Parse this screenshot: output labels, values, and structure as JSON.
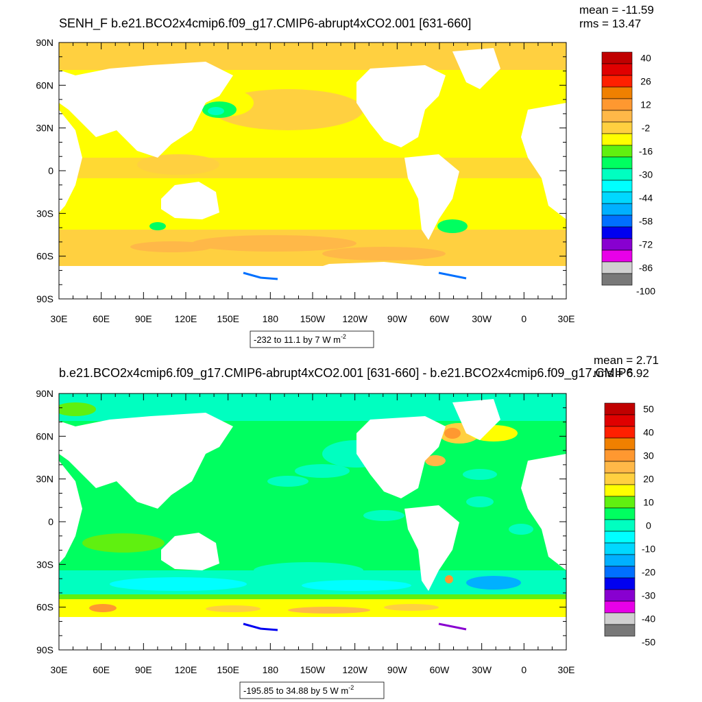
{
  "chart_data": [
    {
      "type": "heatmap",
      "title": "SENH_F b.e21.BCO2x4cmip6.f09_g17.CMIP6-abrupt4xCO2.001 [631-660]",
      "stats": {
        "mean": "mean = -11.59",
        "rms": "rms = 13.47"
      },
      "x_ticks": [
        "30E",
        "60E",
        "90E",
        "120E",
        "150E",
        "180",
        "150W",
        "120W",
        "90W",
        "60W",
        "30W",
        "0",
        "30E"
      ],
      "y_ticks": [
        "90N",
        "60N",
        "30N",
        "0",
        "30S",
        "60S",
        "90S"
      ],
      "xlim": [
        30,
        390
      ],
      "ylim": [
        -90,
        90
      ],
      "colorbar": {
        "labels": [
          "40",
          "26",
          "12",
          "-2",
          "-16",
          "-30",
          "-44",
          "-58",
          "-72",
          "-86",
          "-100"
        ],
        "colors": [
          "#c00000",
          "#e00000",
          "#ff2000",
          "#f08000",
          "#ff9830",
          "#ffb848",
          "#ffd040",
          "#ffff00",
          "#60f010",
          "#00ff60",
          "#00ffc0",
          "#00ffff",
          "#00d8ff",
          "#00b0ff",
          "#0070ff",
          "#0000f0",
          "#8800d0",
          "#e800e8",
          "#d0d0d0",
          "#787878"
        ]
      },
      "range_label": "-232 to 11.1 by 7  W m",
      "range_exp": "-2"
    },
    {
      "type": "heatmap",
      "title": "b.e21.BCO2x4cmip6.f09_g17.CMIP6-abrupt4xCO2.001 [631-660] - b.e21.BCO2x4cmip6.f09_g17.CMIP6",
      "stats": {
        "mean": "mean = 2.71",
        "rms": "rms = 6.92"
      },
      "x_ticks": [
        "30E",
        "60E",
        "90E",
        "120E",
        "150E",
        "180",
        "150W",
        "120W",
        "90W",
        "60W",
        "30W",
        "0",
        "30E"
      ],
      "y_ticks": [
        "90N",
        "60N",
        "30N",
        "0",
        "30S",
        "60S",
        "90S"
      ],
      "xlim": [
        30,
        390
      ],
      "ylim": [
        -90,
        90
      ],
      "colorbar": {
        "labels": [
          "50",
          "40",
          "30",
          "20",
          "10",
          "0",
          "-10",
          "-20",
          "-30",
          "-40",
          "-50"
        ],
        "colors": [
          "#c00000",
          "#e00000",
          "#ff2000",
          "#f08000",
          "#ff9830",
          "#ffb848",
          "#ffd040",
          "#ffff00",
          "#60f010",
          "#00ff60",
          "#00ffc0",
          "#00ffff",
          "#00d8ff",
          "#00b0ff",
          "#0070ff",
          "#0000f0",
          "#8800d0",
          "#e800e8",
          "#d0d0d0",
          "#787878"
        ]
      },
      "range_label": "-195.85 to 34.88 by 5  W m",
      "range_exp": "-2"
    }
  ]
}
